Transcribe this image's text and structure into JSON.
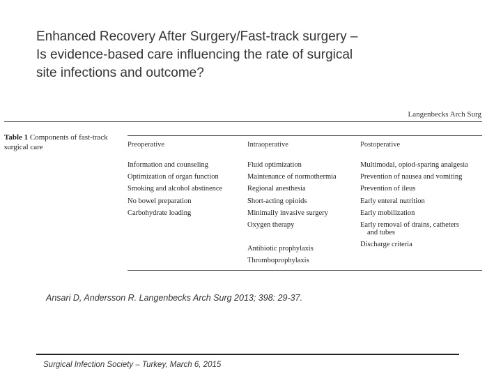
{
  "title": {
    "line1": "Enhanced Recovery After Surgery/Fast-track surgery –",
    "line2": "Is evidence-based care influencing the rate of surgical",
    "line3": "site infections and outcome?"
  },
  "journal_header": "Langenbecks Arch Surg",
  "table": {
    "label": "Table 1",
    "caption": "Components of fast-track surgical care",
    "columns": [
      "Preoperative",
      "Intraoperative",
      "Postoperative"
    ],
    "preoperative": [
      "Information and counseling",
      "Optimization of organ function",
      "Smoking and alcohol abstinence",
      "No bowel preparation",
      "Carbohydrate loading"
    ],
    "intraoperative": [
      "Fluid optimization",
      "Maintenance of normothermia",
      "Regional anesthesia",
      "Short-acting opioids",
      "Minimally invasive surgery",
      "Oxygen therapy",
      "Antibiotic prophylaxis",
      "Thromboprophylaxis"
    ],
    "postoperative": [
      "Multimodal, opiod-sparing analgesia",
      "Prevention of nausea and vomiting",
      "Prevention of ileus",
      "Early enteral nutrition",
      "Early mobilization",
      "Early removal of drains, catheters",
      "and tubes",
      "Discharge criteria"
    ]
  },
  "citation": "Ansari D, Andersson R. Langenbecks Arch Surg 2013; 398: 29-37.",
  "footer": "Surgical Infection Society – Turkey, March 6, 2015"
}
